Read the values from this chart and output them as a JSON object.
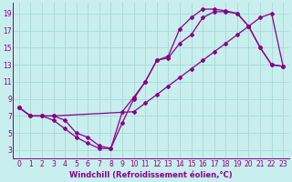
{
  "bg_color": "#c8eeee",
  "grid_color": "#a8d8d8",
  "line_color": "#880088",
  "marker": "D",
  "markersize": 2.0,
  "linewidth": 0.9,
  "xlabel": "Windchill (Refroidissement éolien,°C)",
  "xlabel_fontsize": 6.0,
  "tick_fontsize": 5.5,
  "ylabel_ticks": [
    3,
    5,
    7,
    9,
    11,
    13,
    15,
    17,
    19
  ],
  "xlabel_ticks": [
    0,
    1,
    2,
    3,
    4,
    5,
    6,
    7,
    8,
    9,
    10,
    11,
    12,
    13,
    14,
    15,
    16,
    17,
    18,
    19,
    20,
    21,
    22,
    23
  ],
  "xlim": [
    -0.5,
    23.5
  ],
  "ylim": [
    2.0,
    20.2
  ],
  "curve1_x": [
    0,
    1,
    2,
    3,
    4,
    5,
    6,
    7,
    8,
    9,
    10,
    11,
    12,
    13,
    14,
    15,
    16,
    17,
    18,
    19,
    20,
    21,
    22,
    23
  ],
  "curve1_y": [
    8.0,
    7.0,
    7.0,
    6.5,
    5.5,
    4.5,
    3.8,
    3.2,
    3.2,
    6.2,
    9.0,
    11.0,
    13.5,
    13.8,
    15.5,
    16.5,
    18.5,
    19.2,
    19.2,
    19.0,
    17.5,
    15.0,
    13.0,
    12.8
  ],
  "curve2_x": [
    0,
    1,
    2,
    3,
    4,
    5,
    6,
    7,
    8,
    9,
    10,
    11,
    12,
    13,
    14,
    15,
    16,
    17,
    18,
    19,
    20,
    21,
    22,
    23
  ],
  "curve2_y": [
    8.0,
    7.0,
    7.0,
    7.0,
    6.5,
    5.0,
    4.5,
    3.5,
    3.2,
    7.5,
    9.2,
    11.0,
    13.5,
    14.0,
    17.2,
    18.5,
    19.5,
    19.5,
    19.3,
    19.0,
    17.5,
    15.0,
    13.0,
    12.8
  ],
  "curve3_x": [
    0,
    1,
    2,
    3,
    10,
    11,
    12,
    13,
    14,
    15,
    16,
    17,
    18,
    19,
    20,
    21,
    22,
    23
  ],
  "curve3_y": [
    8.0,
    7.0,
    7.0,
    7.0,
    7.5,
    8.5,
    9.5,
    10.5,
    11.5,
    12.5,
    13.5,
    14.5,
    15.5,
    16.5,
    17.5,
    18.5,
    19.0,
    12.8
  ]
}
